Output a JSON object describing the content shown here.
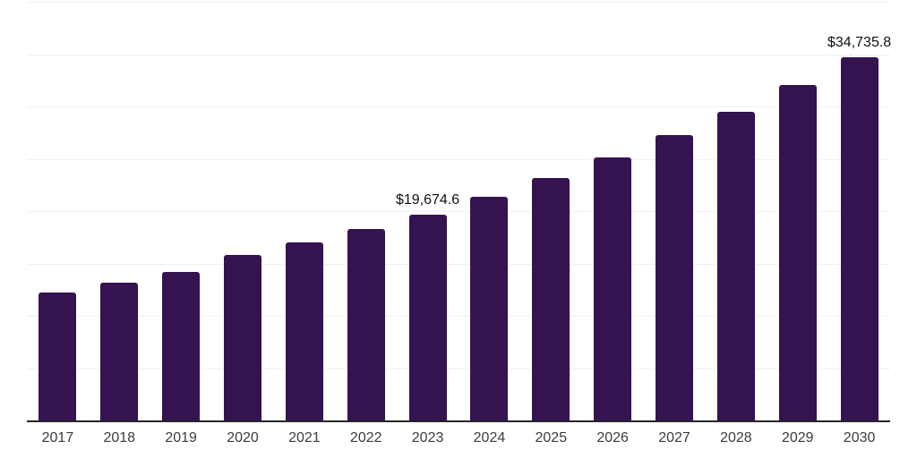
{
  "page": {
    "background": "#ffffff"
  },
  "chart_data": {
    "type": "bar",
    "title": "",
    "xlabel": "",
    "ylabel": "",
    "categories": [
      "2017",
      "2018",
      "2019",
      "2020",
      "2021",
      "2022",
      "2023",
      "2024",
      "2025",
      "2026",
      "2027",
      "2028",
      "2029",
      "2030"
    ],
    "values": [
      12220,
      13160,
      14150,
      15850,
      17040,
      18290,
      19674.6,
      21340,
      23140,
      25100,
      27230,
      29530,
      32030,
      34735.8
    ],
    "data_labels": [
      "",
      "",
      "",
      "",
      "",
      "",
      "$19,674.6",
      "",
      "",
      "",
      "",
      "",
      "",
      "$34,735.8"
    ],
    "ylim": [
      0,
      40000
    ],
    "grid_step": 5000,
    "grid": true,
    "y_tick_labels_visible": false,
    "legend_position": "none",
    "bar_color": "#351250",
    "grid_color": "#f0f0f0",
    "axis_color": "#262626",
    "tick_label_color": "#3c3c3c",
    "data_label_color": "#111111"
  }
}
